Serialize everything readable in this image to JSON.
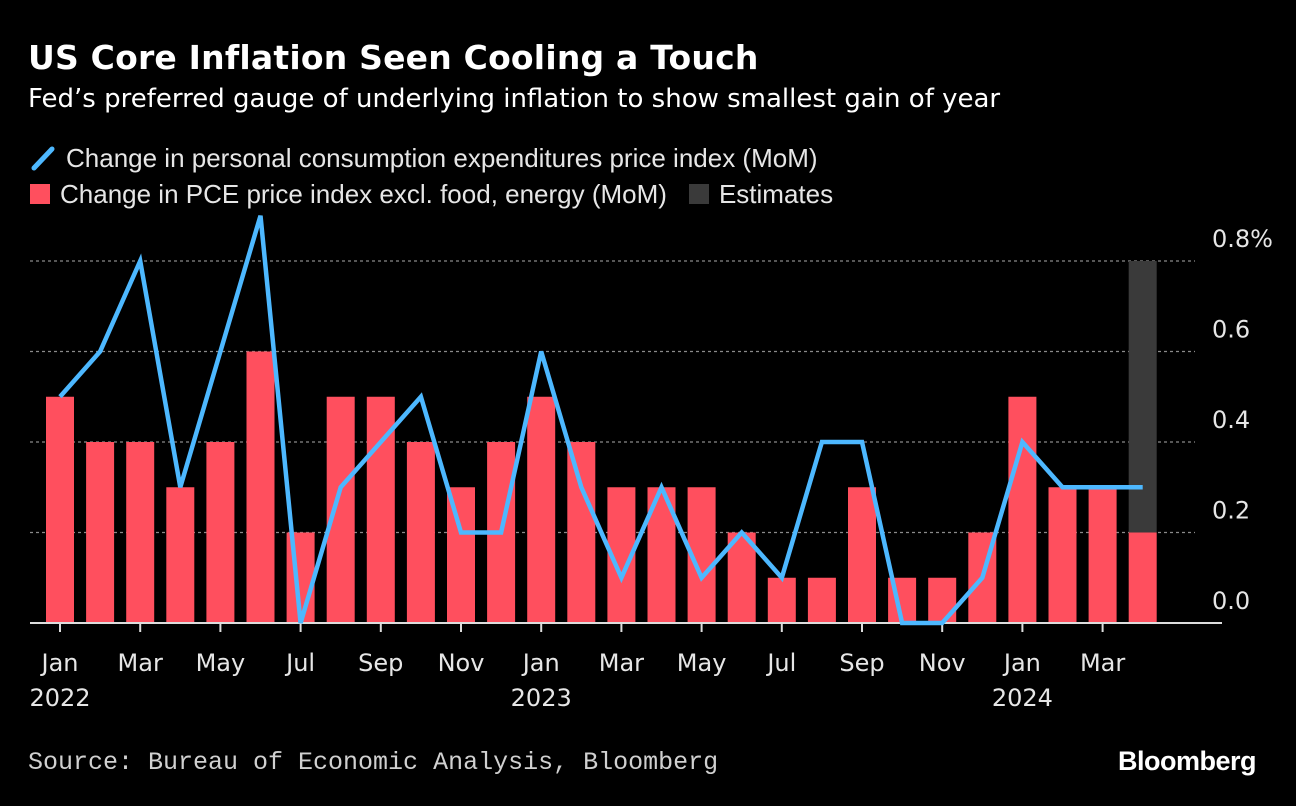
{
  "header": {
    "title": "US Core Inflation Seen Cooling a Touch",
    "subtitle": "Fed’s preferred gauge of underlying inflation to show smallest gain of year"
  },
  "legend": {
    "line_label": "Change in personal consumption expenditures price index (MoM)",
    "bar_label": "Change in PCE price index excl. food, energy (MoM)",
    "estimate_label": "Estimates"
  },
  "footer": {
    "source": "Source: Bureau of Economic Analysis, Bloomberg",
    "brand": "Bloomberg"
  },
  "colors": {
    "background": "#000000",
    "line": "#4db8ff",
    "bar": "#ff4f5e",
    "estimate": "#3a3a3a",
    "grid": "#8a8a8a",
    "axis": "#dddddd"
  },
  "chart_data": {
    "type": "bar+line",
    "months": [
      "Jan 2022",
      "Feb 2022",
      "Mar 2022",
      "Apr 2022",
      "May 2022",
      "Jun 2022",
      "Jul 2022",
      "Aug 2022",
      "Sep 2022",
      "Oct 2022",
      "Nov 2022",
      "Dec 2022",
      "Jan 2023",
      "Feb 2023",
      "Mar 2023",
      "Apr 2023",
      "May 2023",
      "Jun 2023",
      "Jul 2023",
      "Aug 2023",
      "Sep 2023",
      "Oct 2023",
      "Nov 2023",
      "Dec 2023",
      "Jan 2024",
      "Feb 2024",
      "Mar 2024",
      "Apr 2024"
    ],
    "series": [
      {
        "name": "Change in PCE price index excl. food, energy (MoM)",
        "type": "bar",
        "values": [
          0.5,
          0.4,
          0.4,
          0.3,
          0.4,
          0.6,
          0.2,
          0.5,
          0.5,
          0.4,
          0.3,
          0.4,
          0.5,
          0.4,
          0.3,
          0.3,
          0.3,
          0.2,
          0.1,
          0.1,
          0.3,
          0.1,
          0.1,
          0.2,
          0.5,
          0.3,
          0.3,
          0.2
        ]
      },
      {
        "name": "Change in personal consumption expenditures price index (MoM)",
        "type": "line",
        "values": [
          0.5,
          0.6,
          0.8,
          0.3,
          0.6,
          0.9,
          0.0,
          0.3,
          0.4,
          0.5,
          0.2,
          0.2,
          0.6,
          0.3,
          0.1,
          0.3,
          0.1,
          0.2,
          0.1,
          0.4,
          0.4,
          0.0,
          0.0,
          0.1,
          0.4,
          0.3,
          0.3,
          0.3
        ]
      }
    ],
    "estimate": {
      "month": "Apr 2024",
      "range": [
        0.2,
        0.8
      ]
    },
    "ylim": [
      0,
      0.8
    ],
    "y_ticks": [
      {
        "value": 0.0,
        "label": "0.0"
      },
      {
        "value": 0.2,
        "label": "0.2"
      },
      {
        "value": 0.4,
        "label": "0.4"
      },
      {
        "value": 0.6,
        "label": "0.6"
      },
      {
        "value": 0.8,
        "label": "0.8%"
      }
    ],
    "x_ticks": [
      {
        "index": 0,
        "month": "Jan",
        "year": "2022"
      },
      {
        "index": 2,
        "month": "Mar",
        "year": ""
      },
      {
        "index": 4,
        "month": "May",
        "year": ""
      },
      {
        "index": 6,
        "month": "Jul",
        "year": ""
      },
      {
        "index": 8,
        "month": "Sep",
        "year": ""
      },
      {
        "index": 10,
        "month": "Nov",
        "year": ""
      },
      {
        "index": 12,
        "month": "Jan",
        "year": "2023"
      },
      {
        "index": 14,
        "month": "Mar",
        "year": ""
      },
      {
        "index": 16,
        "month": "May",
        "year": ""
      },
      {
        "index": 18,
        "month": "Jul",
        "year": ""
      },
      {
        "index": 20,
        "month": "Sep",
        "year": ""
      },
      {
        "index": 22,
        "month": "Nov",
        "year": ""
      },
      {
        "index": 24,
        "month": "Jan",
        "year": "2024"
      },
      {
        "index": 26,
        "month": "Mar",
        "year": ""
      }
    ],
    "grid": true,
    "y_axis_position": "right",
    "legend_position": "top-left"
  }
}
